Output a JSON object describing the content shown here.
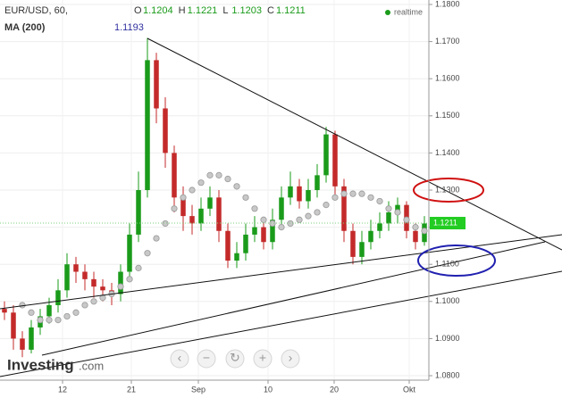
{
  "chart_data": {
    "type": "candlestick",
    "title": "EUR/USD, 60,",
    "ohlc_labels": [
      "O",
      "H",
      "L",
      "C"
    ],
    "ohlc_values": [
      1.1204,
      1.1221,
      1.1203,
      1.1211
    ],
    "status": "realtime",
    "brand_name": "Investing",
    "brand_suffix": ".com",
    "last_price": 1.1211,
    "up_color": "#1a9b1a",
    "down_color": "#c42a2a",
    "xlim": [
      0,
      48
    ],
    "xticks": [
      {
        "value": 7,
        "label": "12"
      },
      {
        "value": 14.7,
        "label": "21"
      },
      {
        "value": 22.2,
        "label": "Sep"
      },
      {
        "value": 30,
        "label": "10"
      },
      {
        "value": 37.4,
        "label": "20"
      },
      {
        "value": 45.8,
        "label": "Okt"
      }
    ],
    "ylim": [
      1.08,
      1.18
    ],
    "yticks": [
      {
        "value": 1.08,
        "label": "1.0800"
      },
      {
        "value": 1.09,
        "label": "1.0900"
      },
      {
        "value": 1.1,
        "label": "1.1000"
      },
      {
        "value": 1.11,
        "label": "1.1100"
      },
      {
        "value": 1.12,
        "label": "1.1200"
      },
      {
        "value": 1.13,
        "label": "1.1300"
      },
      {
        "value": 1.14,
        "label": "1.1400"
      },
      {
        "value": 1.15,
        "label": "1.1500"
      },
      {
        "value": 1.16,
        "label": "1.1600"
      },
      {
        "value": 1.17,
        "label": "1.1700"
      },
      {
        "value": 1.18,
        "label": "1.1800"
      }
    ],
    "grid": true,
    "open": [
      1.098,
      1.097,
      1.09,
      1.087,
      1.093,
      1.096,
      1.099,
      1.103,
      1.11,
      1.108,
      1.106,
      1.104,
      1.103,
      1.102,
      1.108,
      1.118,
      1.13,
      1.165,
      1.152,
      1.14,
      1.128,
      1.123,
      1.121,
      1.125,
      1.128,
      1.119,
      1.111,
      1.113,
      1.118,
      1.12,
      1.116,
      1.122,
      1.128,
      1.131,
      1.127,
      1.13,
      1.134,
      1.145,
      1.131,
      1.119,
      1.112,
      1.116,
      1.119,
      1.121,
      1.124,
      1.126,
      1.119,
      1.116
    ],
    "high": [
      1.1,
      1.099,
      1.092,
      1.095,
      1.098,
      1.101,
      1.106,
      1.113,
      1.112,
      1.11,
      1.108,
      1.106,
      1.105,
      1.11,
      1.121,
      1.135,
      1.171,
      1.167,
      1.155,
      1.142,
      1.131,
      1.126,
      1.128,
      1.131,
      1.13,
      1.121,
      1.116,
      1.121,
      1.123,
      1.122,
      1.125,
      1.131,
      1.135,
      1.133,
      1.133,
      1.137,
      1.147,
      1.146,
      1.133,
      1.121,
      1.119,
      1.122,
      1.124,
      1.127,
      1.128,
      1.127,
      1.121,
      1.123
    ],
    "low": [
      1.095,
      1.087,
      1.085,
      1.086,
      1.091,
      1.094,
      1.097,
      1.101,
      1.105,
      1.103,
      1.101,
      1.1,
      1.099,
      1.1,
      1.106,
      1.116,
      1.128,
      1.148,
      1.136,
      1.124,
      1.119,
      1.118,
      1.119,
      1.123,
      1.116,
      1.109,
      1.109,
      1.111,
      1.116,
      1.114,
      1.114,
      1.12,
      1.126,
      1.125,
      1.125,
      1.128,
      1.132,
      1.128,
      1.116,
      1.11,
      1.11,
      1.114,
      1.117,
      1.119,
      1.121,
      1.117,
      1.114,
      1.115
    ],
    "close": [
      1.097,
      1.09,
      1.087,
      1.093,
      1.096,
      1.099,
      1.103,
      1.11,
      1.108,
      1.106,
      1.104,
      1.103,
      1.102,
      1.108,
      1.118,
      1.13,
      1.165,
      1.152,
      1.14,
      1.128,
      1.123,
      1.121,
      1.125,
      1.128,
      1.119,
      1.111,
      1.113,
      1.118,
      1.12,
      1.116,
      1.122,
      1.128,
      1.131,
      1.127,
      1.13,
      1.134,
      1.145,
      1.131,
      1.119,
      1.112,
      1.116,
      1.119,
      1.121,
      1.124,
      1.126,
      1.119,
      1.116,
      1.121
    ],
    "series": [
      {
        "name": "MA (200)",
        "color": "#c8c8c8",
        "last_value": 1.1193,
        "values": [
          null,
          null,
          1.099,
          1.097,
          1.095,
          1.095,
          1.095,
          1.096,
          1.097,
          1.099,
          1.1,
          1.101,
          1.102,
          1.104,
          1.106,
          1.109,
          1.113,
          1.117,
          1.121,
          1.125,
          1.128,
          1.13,
          1.132,
          1.134,
          1.134,
          1.133,
          1.131,
          1.128,
          1.125,
          1.122,
          1.121,
          1.12,
          1.121,
          1.122,
          1.123,
          1.124,
          1.126,
          1.128,
          1.129,
          1.129,
          1.129,
          1.128,
          1.127,
          1.125,
          1.124,
          1.122,
          1.12,
          1.119
        ]
      }
    ]
  }
}
